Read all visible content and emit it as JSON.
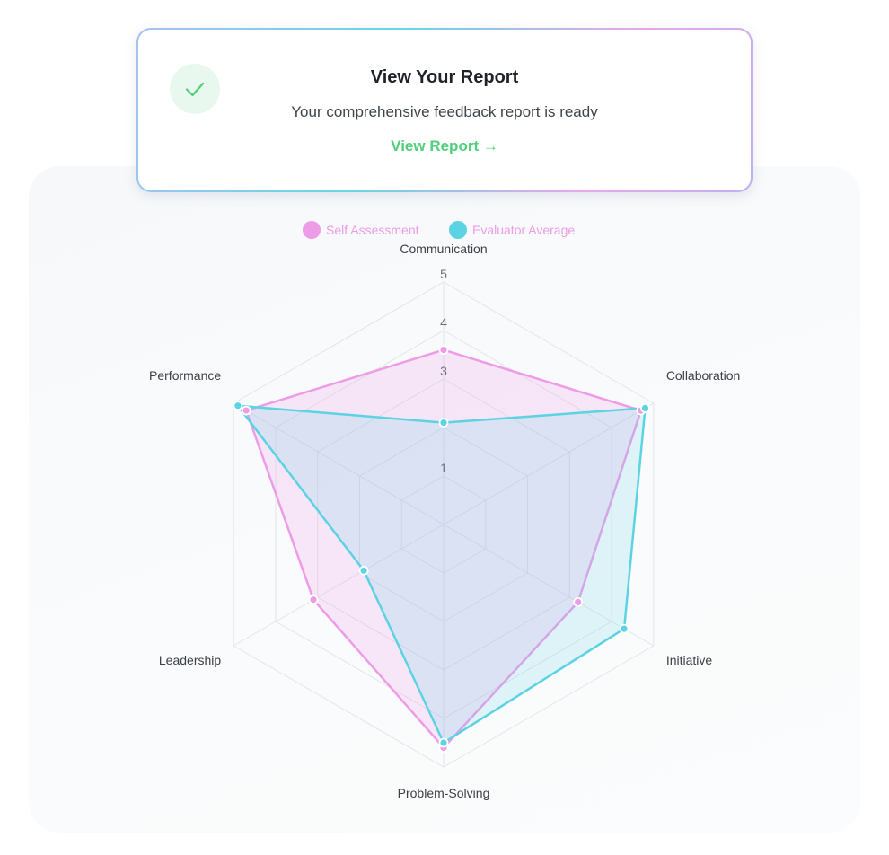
{
  "card": {
    "title": "View Your Report",
    "subtitle": "Your comprehensive feedback report is ready",
    "link_label": "View Report →",
    "check_icon": "check-icon",
    "accent_color": "#4fcf7a"
  },
  "chart_data": {
    "type": "radar",
    "title": "",
    "categories": [
      "Communication",
      "Collaboration",
      "Initiative",
      "Problem-Solving",
      "Leadership",
      "Performance"
    ],
    "scale": {
      "min": 0,
      "max": 5,
      "ticks": [
        1,
        2,
        3,
        4,
        5
      ],
      "tick_labels": [
        "1",
        "",
        "3",
        "4",
        "5"
      ]
    },
    "legend_position": "top-center",
    "series": [
      {
        "name": "Self Assessment",
        "color": "#ee9be8",
        "values": [
          3.6,
          4.7,
          3.2,
          4.6,
          3.1,
          4.7
        ]
      },
      {
        "name": "Evaluator Average",
        "color": "#5cd3e2",
        "values": [
          2.1,
          4.8,
          4.3,
          4.5,
          1.9,
          4.9
        ]
      }
    ]
  }
}
